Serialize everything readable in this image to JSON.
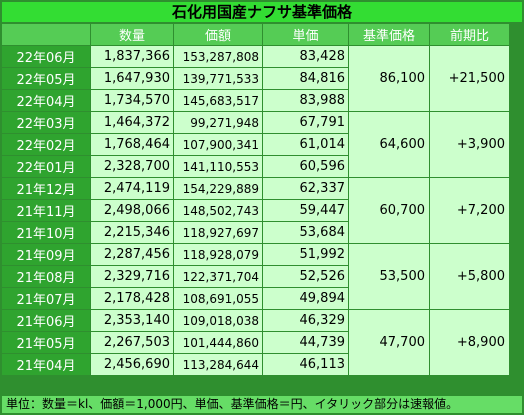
{
  "title": "石化用国産ナフサ基準価格",
  "headers": [
    "",
    "数量",
    "価額",
    "単価",
    "基準価格",
    "前期比"
  ],
  "rows": [
    {
      "month": "22年06月",
      "quantity": "1,837,366",
      "value": "153,287,808",
      "unit_price": "83,428"
    },
    {
      "month": "22年05月",
      "quantity": "1,647,930",
      "value": "139,771,533",
      "unit_price": "84,816"
    },
    {
      "month": "22年04月",
      "quantity": "1,734,570",
      "value": "145,683,517",
      "unit_price": "83,988"
    },
    {
      "month": "22年03月",
      "quantity": "1,464,372",
      "value": "99,271,948",
      "unit_price": "67,791"
    },
    {
      "month": "22年02月",
      "quantity": "1,768,464",
      "value": "107,900,341",
      "unit_price": "61,014"
    },
    {
      "month": "22年01月",
      "quantity": "2,328,700",
      "value": "141,110,553",
      "unit_price": "60,596"
    },
    {
      "month": "21年12月",
      "quantity": "2,474,119",
      "value": "154,229,889",
      "unit_price": "62,337"
    },
    {
      "month": "21年11月",
      "quantity": "2,498,066",
      "value": "148,502,743",
      "unit_price": "59,447"
    },
    {
      "month": "21年10月",
      "quantity": "2,215,346",
      "value": "118,927,697",
      "unit_price": "53,684"
    },
    {
      "month": "21年09月",
      "quantity": "2,287,456",
      "value": "118,928,079",
      "unit_price": "51,992"
    },
    {
      "month": "21年08月",
      "quantity": "2,329,716",
      "value": "122,371,704",
      "unit_price": "52,526"
    },
    {
      "month": "21年07月",
      "quantity": "2,178,428",
      "value": "108,691,055",
      "unit_price": "49,894"
    },
    {
      "month": "21年06月",
      "quantity": "2,353,140",
      "value": "109,018,038",
      "unit_price": "46,329"
    },
    {
      "month": "21年05月",
      "quantity": "2,267,503",
      "value": "101,444,860",
      "unit_price": "44,739"
    },
    {
      "month": "21年04月",
      "quantity": "2,456,690",
      "value": "113,284,644",
      "unit_price": "46,113"
    }
  ],
  "quarters": [
    {
      "base_price": "86,100",
      "change": "+21,500"
    },
    {
      "base_price": "64,600",
      "change": "+3,900"
    },
    {
      "base_price": "60,700",
      "change": "+7,200"
    },
    {
      "base_price": "53,500",
      "change": "+5,800"
    },
    {
      "base_price": "47,700",
      "change": "+8,900"
    }
  ],
  "footer": "単位：数量＝kl、価額＝1,000円、単価、基準価格＝円、イタリック部分は速報値。",
  "colors": {
    "title_bg": "#33dd33",
    "header_bg": "#55cc55",
    "label_bg": "#2fa42f",
    "cell_bg": "#ccffcc",
    "border": "#2f8f2f",
    "footer_bg": "#66dd66"
  }
}
